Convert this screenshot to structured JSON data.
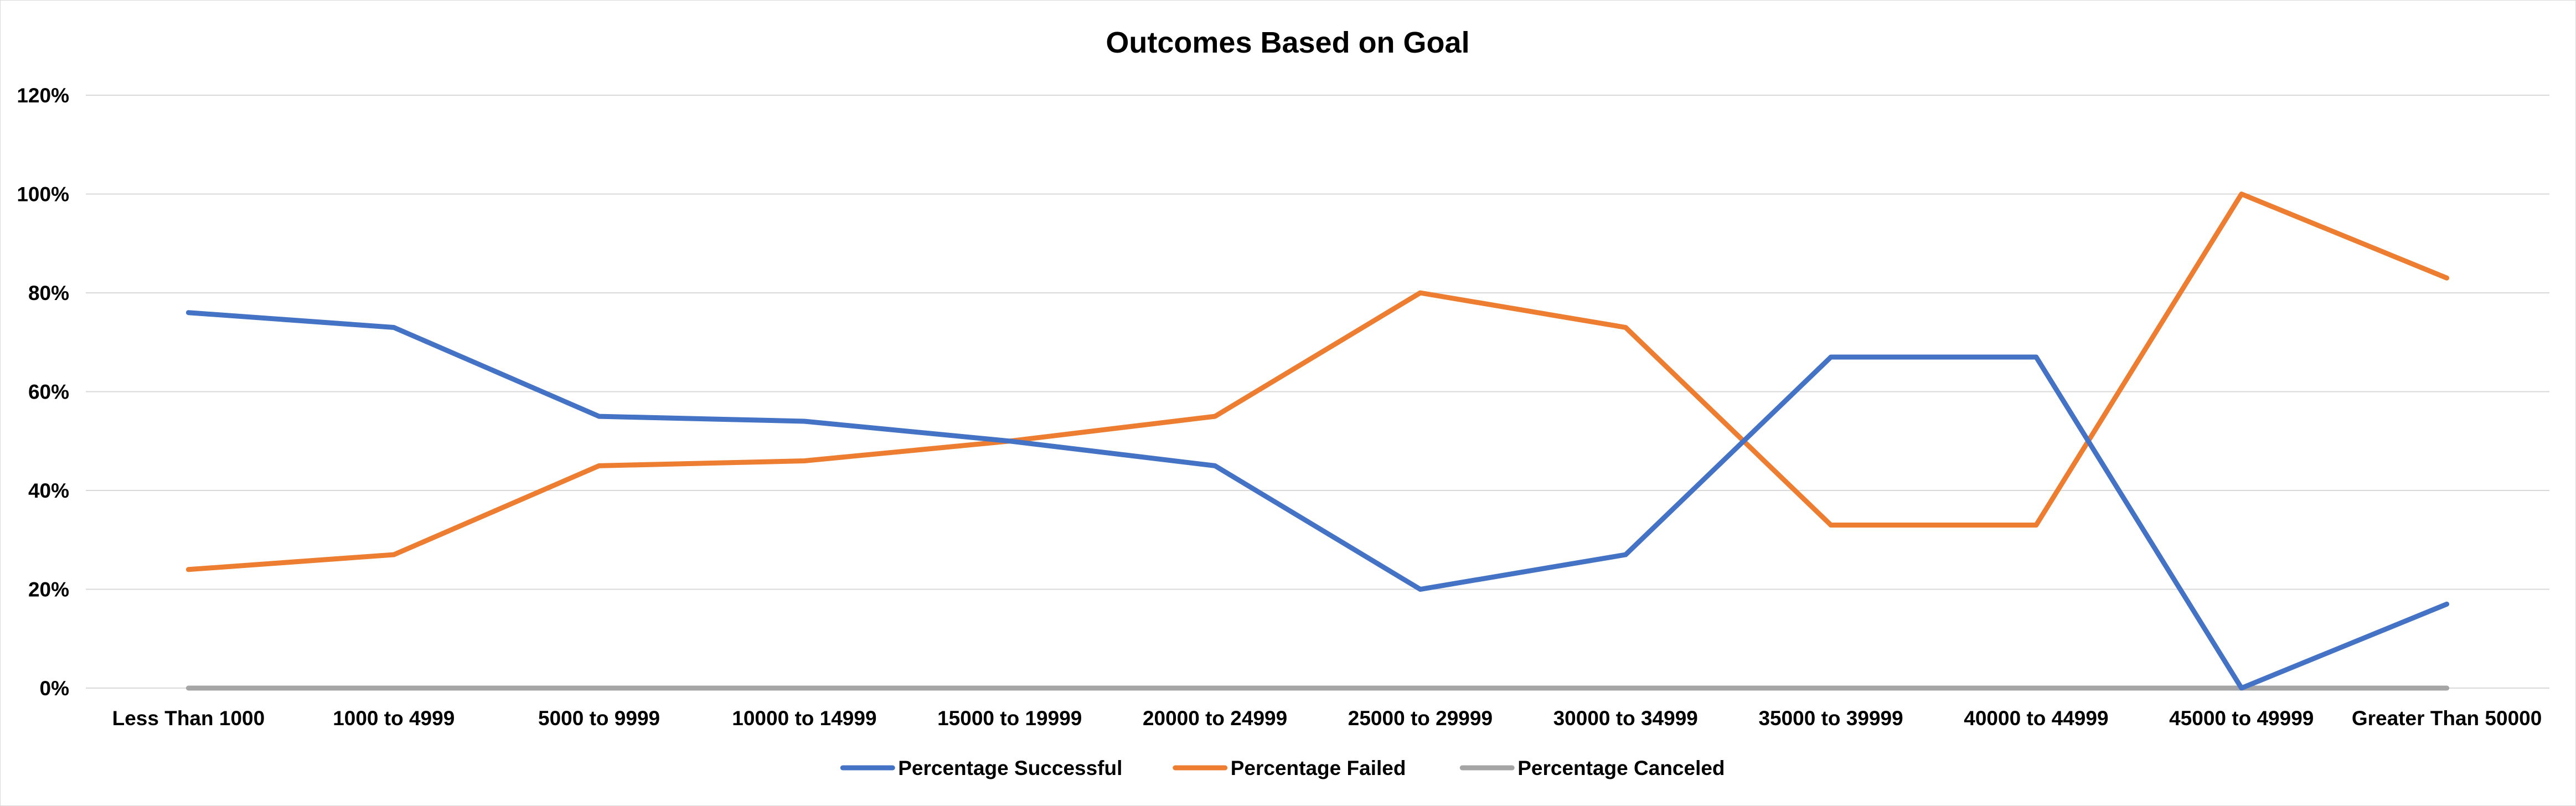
{
  "chart_data": {
    "type": "line",
    "title": "Outcomes Based on Goal",
    "xlabel": "",
    "ylabel": "",
    "categories": [
      "Less Than 1000",
      "1000 to 4999",
      "5000 to 9999",
      "10000 to 14999",
      "15000 to 19999",
      "20000 to 24999",
      "25000 to 29999",
      "30000 to 34999",
      "35000 to 39999",
      "40000 to 44999",
      "45000 to 49999",
      "Greater Than 50000"
    ],
    "ylim": [
      0,
      1.2
    ],
    "y_ticks": [
      {
        "value": 0,
        "label": "0%"
      },
      {
        "value": 0.2,
        "label": "20%"
      },
      {
        "value": 0.4,
        "label": "40%"
      },
      {
        "value": 0.6,
        "label": "60%"
      },
      {
        "value": 0.8,
        "label": "80%"
      },
      {
        "value": 1.0,
        "label": "100%"
      },
      {
        "value": 1.2,
        "label": "120%"
      }
    ],
    "grid": true,
    "legend_position": "bottom",
    "series": [
      {
        "name": "Percentage Successful",
        "color": "#4472c4",
        "values": [
          0.76,
          0.73,
          0.55,
          0.54,
          0.5,
          0.45,
          0.2,
          0.27,
          0.67,
          0.67,
          0.0,
          0.17
        ]
      },
      {
        "name": "Percentage Failed",
        "color": "#ed7d31",
        "values": [
          0.24,
          0.27,
          0.45,
          0.46,
          0.5,
          0.55,
          0.8,
          0.73,
          0.33,
          0.33,
          1.0,
          0.83
        ]
      },
      {
        "name": "Percentage Canceled",
        "color": "#a5a5a5",
        "values": [
          0,
          0,
          0,
          0,
          0,
          0,
          0,
          0,
          0,
          0,
          0,
          0
        ]
      }
    ]
  }
}
